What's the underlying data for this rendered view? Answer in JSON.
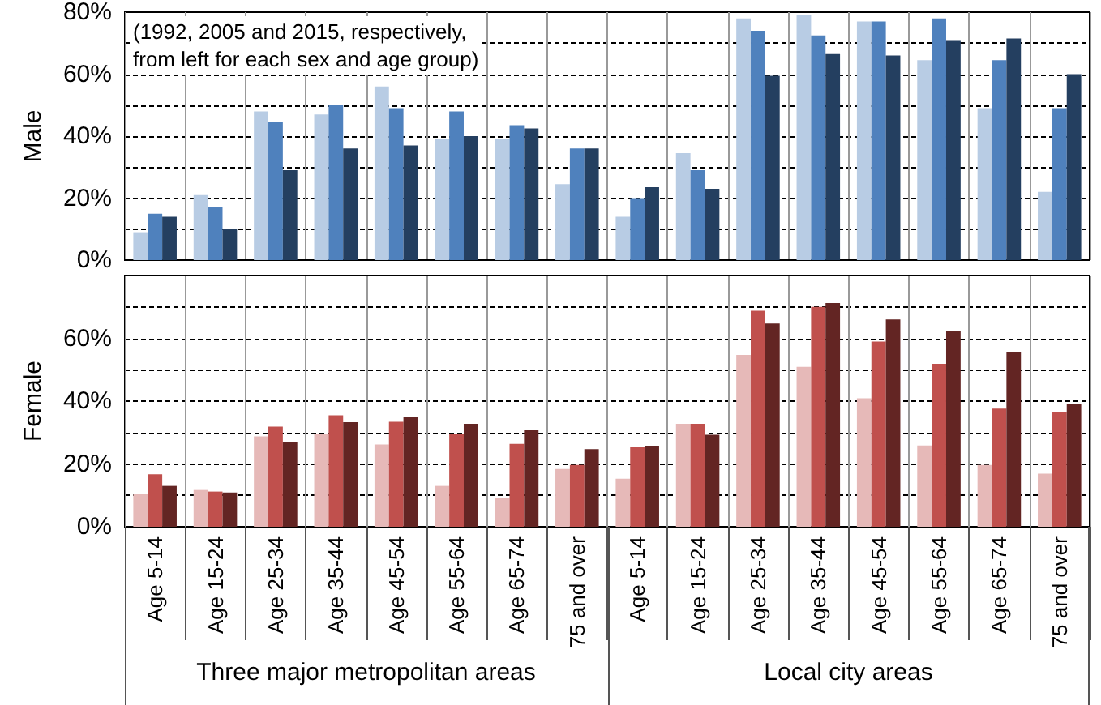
{
  "chart_data": [
    {
      "type": "bar",
      "ylabel": "Male",
      "categories": [
        null,
        null,
        null,
        null,
        null,
        null,
        null,
        null,
        null,
        null,
        null,
        null,
        null,
        null,
        null,
        null
      ],
      "series": [
        {
          "color": "#b8cce4",
          "values": [
            9,
            21,
            48,
            47,
            56,
            39,
            39,
            24.5,
            14,
            34.5,
            78,
            79,
            77,
            64.5,
            49,
            22
          ]
        },
        {
          "color": "#4f81bd",
          "values": [
            15,
            17,
            44.5,
            50,
            49,
            48,
            43.5,
            36,
            20,
            29,
            74,
            72.5,
            77,
            78,
            64.5,
            49
          ]
        },
        {
          "color": "#243f60",
          "values": [
            14,
            10,
            29,
            36,
            37,
            40,
            42.5,
            36,
            23.5,
            23,
            59.5,
            66.5,
            66,
            71,
            71.5,
            60
          ]
        }
      ],
      "ylim": [
        0,
        80
      ],
      "yticks": [
        {
          "value": 0,
          "label": "0%"
        },
        {
          "value": 10,
          "label": null
        },
        {
          "value": 20,
          "label": "20%"
        },
        {
          "value": 30,
          "label": null
        },
        {
          "value": 40,
          "label": "40%"
        },
        {
          "value": 50,
          "label": null
        },
        {
          "value": 60,
          "label": "60%"
        },
        {
          "value": 70,
          "label": null
        },
        {
          "value": 80,
          "label": "80%"
        }
      ],
      "grid": true,
      "tick_labels": "y",
      "annotations": [
        "(1992, 2005 and 2015, respectively,\nfrom left for each sex and age group)"
      ]
    },
    {
      "type": "bar",
      "ylabel": "Female",
      "categories": [
        "Age 5-14",
        "Age 15-24",
        "Age 25-34",
        "Age 35-44",
        "Age 45-54",
        "Age 55-64",
        "Age 65-74",
        "75 and over",
        "Age 5-14",
        "Age 15-24",
        "Age 25-34",
        "Age 35-44",
        "Age 45-54",
        "Age 55-64",
        "Age 65-74",
        "75 and over"
      ],
      "series": [
        {
          "color": "#e6b9b8",
          "values": [
            10.5,
            11.7,
            28.8,
            29.5,
            26.2,
            13,
            9.3,
            18.4,
            15.3,
            32.8,
            54.7,
            50.9,
            40.9,
            25.9,
            19.7,
            16.9
          ]
        },
        {
          "color": "#c0504d",
          "values": [
            16.7,
            11.2,
            31.9,
            35.5,
            33.4,
            29.5,
            26.4,
            19.7,
            25.3,
            32.8,
            68.8,
            70,
            59,
            51.9,
            37.6,
            36.6
          ]
        },
        {
          "color": "#632523",
          "values": [
            13,
            10.9,
            26.9,
            33.3,
            35,
            32.8,
            30.7,
            24.7,
            25.7,
            29.3,
            64.7,
            71.2,
            66,
            62.4,
            55.7,
            39.1
          ]
        }
      ],
      "ylim": [
        0,
        80
      ],
      "yticks": [
        {
          "value": 0,
          "label": "0%"
        },
        {
          "value": 10,
          "label": null
        },
        {
          "value": 20,
          "label": "20%"
        },
        {
          "value": 30,
          "label": null
        },
        {
          "value": 40,
          "label": "40%"
        },
        {
          "value": 50,
          "label": null
        },
        {
          "value": 60,
          "label": "60%"
        },
        {
          "value": 70,
          "label": null
        }
      ],
      "grid": true,
      "annotations": [
        "Three major metropolitan areas",
        "Local city areas"
      ]
    }
  ]
}
